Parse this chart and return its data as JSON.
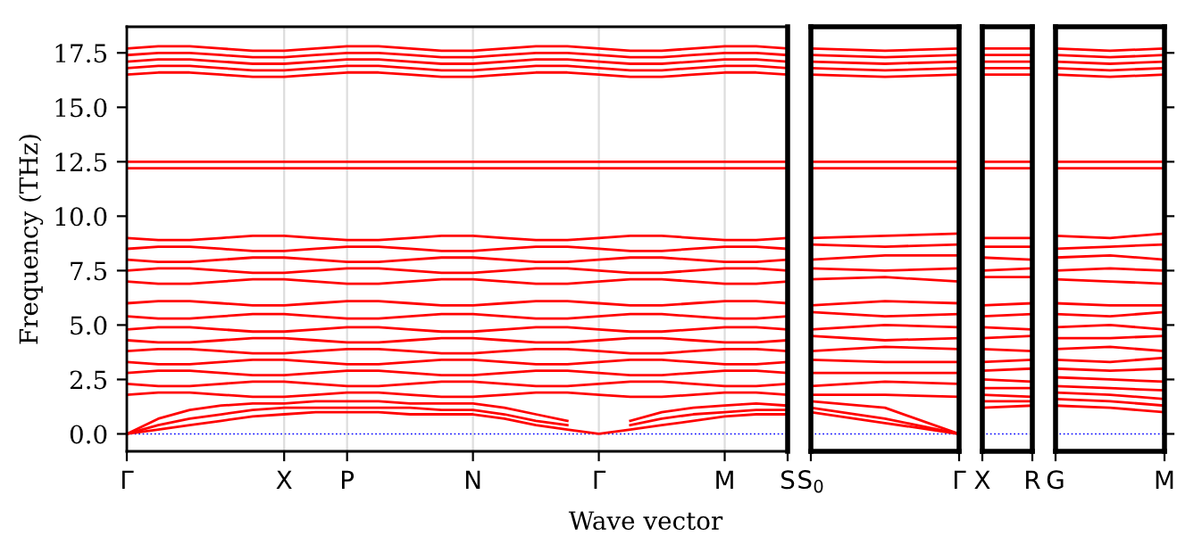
{
  "chart_data": [
    {
      "type": "line",
      "ylabel": "Frequency (THz)",
      "xlabel": "Wave vector",
      "grid": "x",
      "categories": [
        "Γ",
        null,
        null,
        null,
        null,
        "X",
        null,
        "P",
        null,
        null,
        null,
        "N",
        null,
        null,
        null,
        "Γ",
        null,
        null,
        null,
        "M",
        null,
        "S"
      ],
      "ylim": [
        -0.8,
        18.7
      ],
      "yticks": [
        {
          "value": 0,
          "label": "0.0"
        },
        {
          "value": 2.5,
          "label": "2.5"
        },
        {
          "value": 5,
          "label": "5.0"
        },
        {
          "value": 7.5,
          "label": "7.5"
        },
        {
          "value": 10,
          "label": "10.0"
        },
        {
          "value": 12.5,
          "label": "12.5"
        },
        {
          "value": 15,
          "label": "15.0"
        },
        {
          "value": 17.5,
          "label": "17.5"
        }
      ],
      "ref_lines": [
        {
          "axis": "y",
          "value": 0,
          "color": "#0000ff",
          "line_style": "dotted"
        }
      ],
      "series": [
        {
          "color": "#ff0000",
          "values": [
            0,
            0.2,
            0.4,
            0.6,
            0.8,
            0.9,
            1.0,
            1.0,
            1.0,
            0.9,
            0.9,
            0.9,
            0.7,
            0.4,
            0.2,
            0,
            0.2,
            0.4,
            0.6,
            0.8,
            0.9,
            0.9
          ]
        },
        {
          "color": "#ff0000",
          "values": [
            0,
            0.4,
            0.7,
            0.9,
            1.1,
            1.2,
            1.2,
            1.2,
            1.2,
            1.2,
            1.1,
            1.1,
            0.9,
            0.6,
            0.4,
            null,
            0.4,
            0.7,
            0.9,
            1.0,
            1.1,
            1.1
          ]
        },
        {
          "color": "#ff0000",
          "values": [
            0,
            0.7,
            1.1,
            1.3,
            1.4,
            1.4,
            1.5,
            1.5,
            1.5,
            1.4,
            1.4,
            1.4,
            1.2,
            0.9,
            0.6,
            null,
            0.6,
            1.0,
            1.2,
            1.3,
            1.4,
            1.3
          ]
        },
        {
          "color": "#ff0000",
          "values": [
            1.8,
            1.9,
            1.9,
            1.8,
            1.7,
            1.7,
            1.8,
            1.9,
            1.9,
            1.8,
            1.7,
            1.7,
            1.8,
            1.9,
            1.9,
            1.8,
            1.7,
            1.7,
            1.8,
            1.9,
            1.9,
            1.8
          ]
        },
        {
          "color": "#ff0000",
          "values": [
            2.3,
            2.2,
            2.2,
            2.3,
            2.4,
            2.4,
            2.3,
            2.2,
            2.2,
            2.3,
            2.4,
            2.4,
            2.3,
            2.2,
            2.2,
            2.3,
            2.4,
            2.4,
            2.3,
            2.2,
            2.2,
            2.3
          ]
        },
        {
          "color": "#ff0000",
          "values": [
            2.8,
            2.9,
            2.9,
            2.8,
            2.7,
            2.7,
            2.8,
            2.9,
            2.9,
            2.8,
            2.7,
            2.7,
            2.8,
            2.9,
            2.9,
            2.8,
            2.7,
            2.7,
            2.8,
            2.9,
            2.9,
            2.8
          ]
        },
        {
          "color": "#ff0000",
          "values": [
            3.3,
            3.2,
            3.2,
            3.3,
            3.4,
            3.4,
            3.3,
            3.2,
            3.2,
            3.3,
            3.4,
            3.4,
            3.3,
            3.2,
            3.2,
            3.3,
            3.4,
            3.4,
            3.3,
            3.2,
            3.2,
            3.3
          ]
        },
        {
          "color": "#ff0000",
          "values": [
            3.8,
            3.9,
            3.9,
            3.8,
            3.7,
            3.7,
            3.8,
            3.9,
            3.9,
            3.8,
            3.7,
            3.7,
            3.8,
            3.9,
            3.9,
            3.8,
            3.7,
            3.7,
            3.8,
            3.9,
            3.9,
            3.8
          ]
        },
        {
          "color": "#ff0000",
          "values": [
            4.3,
            4.2,
            4.2,
            4.3,
            4.4,
            4.4,
            4.3,
            4.2,
            4.2,
            4.3,
            4.4,
            4.4,
            4.3,
            4.2,
            4.2,
            4.3,
            4.4,
            4.4,
            4.3,
            4.2,
            4.2,
            4.3
          ]
        },
        {
          "color": "#ff0000",
          "values": [
            4.8,
            4.9,
            4.9,
            4.8,
            4.7,
            4.7,
            4.8,
            4.9,
            4.9,
            4.8,
            4.7,
            4.7,
            4.8,
            4.9,
            4.9,
            4.8,
            4.7,
            4.7,
            4.8,
            4.9,
            4.9,
            4.8
          ]
        },
        {
          "color": "#ff0000",
          "values": [
            5.4,
            5.3,
            5.3,
            5.4,
            5.5,
            5.5,
            5.4,
            5.3,
            5.3,
            5.4,
            5.5,
            5.5,
            5.4,
            5.3,
            5.3,
            5.4,
            5.5,
            5.5,
            5.4,
            5.3,
            5.3,
            5.4
          ]
        },
        {
          "color": "#ff0000",
          "values": [
            6.0,
            6.1,
            6.1,
            6.0,
            5.9,
            5.9,
            6.0,
            6.1,
            6.1,
            6.0,
            5.9,
            5.9,
            6.0,
            6.1,
            6.1,
            6.0,
            5.9,
            5.9,
            6.0,
            6.1,
            6.1,
            6.0
          ]
        },
        {
          "color": "#ff0000",
          "values": [
            7.0,
            6.9,
            6.9,
            7.0,
            7.1,
            7.1,
            7.0,
            6.9,
            6.9,
            7.0,
            7.1,
            7.1,
            7.0,
            6.9,
            6.9,
            7.0,
            7.1,
            7.1,
            7.0,
            6.9,
            6.9,
            7.0
          ]
        },
        {
          "color": "#ff0000",
          "values": [
            7.5,
            7.6,
            7.6,
            7.5,
            7.4,
            7.4,
            7.5,
            7.6,
            7.6,
            7.5,
            7.4,
            7.4,
            7.5,
            7.6,
            7.6,
            7.5,
            7.4,
            7.4,
            7.5,
            7.6,
            7.6,
            7.5
          ]
        },
        {
          "color": "#ff0000",
          "values": [
            8.0,
            7.9,
            7.9,
            8.0,
            8.1,
            8.1,
            8.0,
            7.9,
            7.9,
            8.0,
            8.1,
            8.1,
            8.0,
            7.9,
            7.9,
            8.0,
            8.1,
            8.1,
            8.0,
            7.9,
            7.9,
            8.0
          ]
        },
        {
          "color": "#ff0000",
          "values": [
            8.5,
            8.6,
            8.6,
            8.5,
            8.4,
            8.4,
            8.5,
            8.6,
            8.6,
            8.5,
            8.4,
            8.4,
            8.5,
            8.6,
            8.6,
            8.5,
            8.4,
            8.4,
            8.5,
            8.6,
            8.6,
            8.5
          ]
        },
        {
          "color": "#ff0000",
          "values": [
            9.0,
            8.9,
            8.9,
            9.0,
            9.1,
            9.1,
            9.0,
            8.9,
            8.9,
            9.0,
            9.1,
            9.1,
            9.0,
            8.9,
            8.9,
            9.0,
            9.1,
            9.1,
            9.0,
            8.9,
            8.9,
            9.0
          ]
        },
        {
          "color": "#ff0000",
          "values": [
            12.2,
            12.2,
            12.2,
            12.2,
            12.2,
            12.2,
            12.2,
            12.2,
            12.2,
            12.2,
            12.2,
            12.2,
            12.2,
            12.2,
            12.2,
            12.2,
            12.2,
            12.2,
            12.2,
            12.2,
            12.2,
            12.2
          ]
        },
        {
          "color": "#ff0000",
          "values": [
            12.5,
            12.5,
            12.5,
            12.5,
            12.5,
            12.5,
            12.5,
            12.5,
            12.5,
            12.5,
            12.5,
            12.5,
            12.5,
            12.5,
            12.5,
            12.5,
            12.5,
            12.5,
            12.5,
            12.5,
            12.5,
            12.5
          ]
        },
        {
          "color": "#ff0000",
          "values": [
            16.5,
            16.6,
            16.6,
            16.5,
            16.4,
            16.4,
            16.5,
            16.6,
            16.6,
            16.5,
            16.4,
            16.4,
            16.5,
            16.6,
            16.6,
            16.5,
            16.4,
            16.4,
            16.5,
            16.6,
            16.6,
            16.5
          ]
        },
        {
          "color": "#ff0000",
          "values": [
            16.8,
            16.9,
            16.9,
            16.8,
            16.7,
            16.7,
            16.8,
            16.9,
            16.9,
            16.8,
            16.7,
            16.7,
            16.8,
            16.9,
            16.9,
            16.8,
            16.7,
            16.7,
            16.8,
            16.9,
            16.9,
            16.8
          ]
        },
        {
          "color": "#ff0000",
          "values": [
            17.1,
            17.2,
            17.2,
            17.1,
            17.0,
            17.0,
            17.1,
            17.2,
            17.2,
            17.1,
            17.0,
            17.0,
            17.1,
            17.2,
            17.2,
            17.1,
            17.0,
            17.0,
            17.1,
            17.2,
            17.2,
            17.1
          ]
        },
        {
          "color": "#ff0000",
          "values": [
            17.4,
            17.5,
            17.5,
            17.4,
            17.3,
            17.3,
            17.4,
            17.5,
            17.5,
            17.4,
            17.3,
            17.3,
            17.4,
            17.5,
            17.5,
            17.4,
            17.3,
            17.3,
            17.4,
            17.5,
            17.5,
            17.4
          ]
        },
        {
          "color": "#ff0000",
          "values": [
            17.7,
            17.8,
            17.8,
            17.7,
            17.6,
            17.6,
            17.7,
            17.8,
            17.8,
            17.7,
            17.6,
            17.6,
            17.7,
            17.8,
            17.8,
            17.7,
            17.6,
            17.6,
            17.7,
            17.8,
            17.8,
            17.7
          ]
        }
      ]
    },
    {
      "type": "line",
      "tick_labels": "x",
      "categories": [
        "S$_{0}$",
        null,
        "Γ"
      ],
      "ylim": [
        -0.8,
        18.7
      ],
      "ref_lines": [
        {
          "axis": "y",
          "value": 0,
          "color": "#0000ff",
          "line_style": "dotted"
        }
      ],
      "series": [
        {
          "color": "#ff0000",
          "values": [
            1.0,
            0.5,
            0
          ]
        },
        {
          "color": "#ff0000",
          "values": [
            1.2,
            0.7,
            0
          ]
        },
        {
          "color": "#ff0000",
          "values": [
            1.5,
            1.2,
            0
          ]
        },
        {
          "color": "#ff0000",
          "values": [
            1.8,
            1.8,
            1.7
          ]
        },
        {
          "color": "#ff0000",
          "values": [
            2.2,
            2.4,
            2.3
          ]
        },
        {
          "color": "#ff0000",
          "values": [
            2.8,
            2.8,
            2.8
          ]
        },
        {
          "color": "#ff0000",
          "values": [
            3.4,
            3.3,
            3.3
          ]
        },
        {
          "color": "#ff0000",
          "values": [
            3.8,
            4.0,
            3.9
          ]
        },
        {
          "color": "#ff0000",
          "values": [
            4.5,
            4.3,
            4.4
          ]
        },
        {
          "color": "#ff0000",
          "values": [
            4.8,
            5.0,
            4.9
          ]
        },
        {
          "color": "#ff0000",
          "values": [
            5.6,
            5.4,
            5.5
          ]
        },
        {
          "color": "#ff0000",
          "values": [
            5.9,
            6.1,
            6.0
          ]
        },
        {
          "color": "#ff0000",
          "values": [
            7.1,
            7.2,
            7.0
          ]
        },
        {
          "color": "#ff0000",
          "values": [
            7.6,
            7.5,
            7.6
          ]
        },
        {
          "color": "#ff0000",
          "values": [
            8.0,
            8.2,
            8.2
          ]
        },
        {
          "color": "#ff0000",
          "values": [
            8.7,
            8.6,
            8.7
          ]
        },
        {
          "color": "#ff0000",
          "values": [
            9.0,
            9.1,
            9.2
          ]
        },
        {
          "color": "#ff0000",
          "values": [
            12.2,
            12.2,
            12.2
          ]
        },
        {
          "color": "#ff0000",
          "values": [
            12.5,
            12.5,
            12.5
          ]
        },
        {
          "color": "#ff0000",
          "values": [
            16.5,
            16.4,
            16.5
          ]
        },
        {
          "color": "#ff0000",
          "values": [
            16.8,
            16.7,
            16.8
          ]
        },
        {
          "color": "#ff0000",
          "values": [
            17.1,
            17.0,
            17.1
          ]
        },
        {
          "color": "#ff0000",
          "values": [
            17.4,
            17.3,
            17.4
          ]
        },
        {
          "color": "#ff0000",
          "values": [
            17.7,
            17.6,
            17.7
          ]
        }
      ]
    },
    {
      "type": "line",
      "tick_labels": "x",
      "categories": [
        "X",
        "R"
      ],
      "ylim": [
        -0.8,
        18.7
      ],
      "ref_lines": [
        {
          "axis": "y",
          "value": 0,
          "color": "#0000ff",
          "line_style": "dotted"
        }
      ],
      "series": [
        {
          "color": "#ff0000",
          "values": [
            1.2,
            1.3
          ]
        },
        {
          "color": "#ff0000",
          "values": [
            1.5,
            1.5
          ]
        },
        {
          "color": "#ff0000",
          "values": [
            1.8,
            1.7
          ]
        },
        {
          "color": "#ff0000",
          "values": [
            2.1,
            2.1
          ]
        },
        {
          "color": "#ff0000",
          "values": [
            2.5,
            2.4
          ]
        },
        {
          "color": "#ff0000",
          "values": [
            2.9,
            3.0
          ]
        },
        {
          "color": "#ff0000",
          "values": [
            3.3,
            3.4
          ]
        },
        {
          "color": "#ff0000",
          "values": [
            3.9,
            3.8
          ]
        },
        {
          "color": "#ff0000",
          "values": [
            4.4,
            4.5
          ]
        },
        {
          "color": "#ff0000",
          "values": [
            4.9,
            4.8
          ]
        },
        {
          "color": "#ff0000",
          "values": [
            5.4,
            5.5
          ]
        },
        {
          "color": "#ff0000",
          "values": [
            5.9,
            6.0
          ]
        },
        {
          "color": "#ff0000",
          "values": [
            7.2,
            7.2
          ]
        },
        {
          "color": "#ff0000",
          "values": [
            7.5,
            7.6
          ]
        },
        {
          "color": "#ff0000",
          "values": [
            8.1,
            8.0
          ]
        },
        {
          "color": "#ff0000",
          "values": [
            8.6,
            8.6
          ]
        },
        {
          "color": "#ff0000",
          "values": [
            9.0,
            9.0
          ]
        },
        {
          "color": "#ff0000",
          "values": [
            12.2,
            12.2
          ]
        },
        {
          "color": "#ff0000",
          "values": [
            12.5,
            12.5
          ]
        },
        {
          "color": "#ff0000",
          "values": [
            16.5,
            16.5
          ]
        },
        {
          "color": "#ff0000",
          "values": [
            16.8,
            16.8
          ]
        },
        {
          "color": "#ff0000",
          "values": [
            17.1,
            17.1
          ]
        },
        {
          "color": "#ff0000",
          "values": [
            17.4,
            17.4
          ]
        },
        {
          "color": "#ff0000",
          "values": [
            17.7,
            17.7
          ]
        }
      ]
    },
    {
      "type": "line",
      "tick_labels": "x",
      "categories": [
        "G",
        null,
        "M"
      ],
      "ylim": [
        -0.8,
        18.7
      ],
      "yticks": [
        {
          "value": 0,
          "label": null
        },
        {
          "value": 2.5,
          "label": null
        },
        {
          "value": 5,
          "label": null
        },
        {
          "value": 7.5,
          "label": null
        },
        {
          "value": 10,
          "label": null
        },
        {
          "value": 12.5,
          "label": null
        },
        {
          "value": 15,
          "label": null
        },
        {
          "value": 17.5,
          "label": null
        }
      ],
      "ref_lines": [
        {
          "axis": "y",
          "value": 0,
          "color": "#0000ff",
          "line_style": "dotted"
        }
      ],
      "series": [
        {
          "color": "#ff0000",
          "values": [
            1.3,
            1.2,
            1.0
          ]
        },
        {
          "color": "#ff0000",
          "values": [
            1.6,
            1.5,
            1.3
          ]
        },
        {
          "color": "#ff0000",
          "values": [
            1.9,
            1.8,
            1.6
          ]
        },
        {
          "color": "#ff0000",
          "values": [
            2.2,
            2.1,
            2.0
          ]
        },
        {
          "color": "#ff0000",
          "values": [
            2.6,
            2.5,
            2.4
          ]
        },
        {
          "color": "#ff0000",
          "values": [
            3.0,
            2.9,
            3.0
          ]
        },
        {
          "color": "#ff0000",
          "values": [
            3.4,
            3.3,
            3.5
          ]
        },
        {
          "color": "#ff0000",
          "values": [
            3.9,
            4.0,
            3.8
          ]
        },
        {
          "color": "#ff0000",
          "values": [
            4.4,
            4.4,
            4.5
          ]
        },
        {
          "color": "#ff0000",
          "values": [
            4.9,
            5.0,
            4.8
          ]
        },
        {
          "color": "#ff0000",
          "values": [
            5.5,
            5.4,
            5.6
          ]
        },
        {
          "color": "#ff0000",
          "values": [
            6.0,
            5.9,
            5.9
          ]
        },
        {
          "color": "#ff0000",
          "values": [
            7.1,
            7.0,
            6.9
          ]
        },
        {
          "color": "#ff0000",
          "values": [
            7.5,
            7.6,
            7.5
          ]
        },
        {
          "color": "#ff0000",
          "values": [
            8.1,
            8.2,
            8.0
          ]
        },
        {
          "color": "#ff0000",
          "values": [
            8.5,
            8.6,
            8.7
          ]
        },
        {
          "color": "#ff0000",
          "values": [
            9.1,
            9.0,
            9.2
          ]
        },
        {
          "color": "#ff0000",
          "values": [
            12.2,
            12.2,
            12.2
          ]
        },
        {
          "color": "#ff0000",
          "values": [
            12.5,
            12.5,
            12.5
          ]
        },
        {
          "color": "#ff0000",
          "values": [
            16.5,
            16.4,
            16.5
          ]
        },
        {
          "color": "#ff0000",
          "values": [
            16.8,
            16.7,
            16.8
          ]
        },
        {
          "color": "#ff0000",
          "values": [
            17.1,
            17.0,
            17.1
          ]
        },
        {
          "color": "#ff0000",
          "values": [
            17.4,
            17.3,
            17.4
          ]
        },
        {
          "color": "#ff0000",
          "values": [
            17.7,
            17.6,
            17.7
          ]
        }
      ]
    }
  ]
}
